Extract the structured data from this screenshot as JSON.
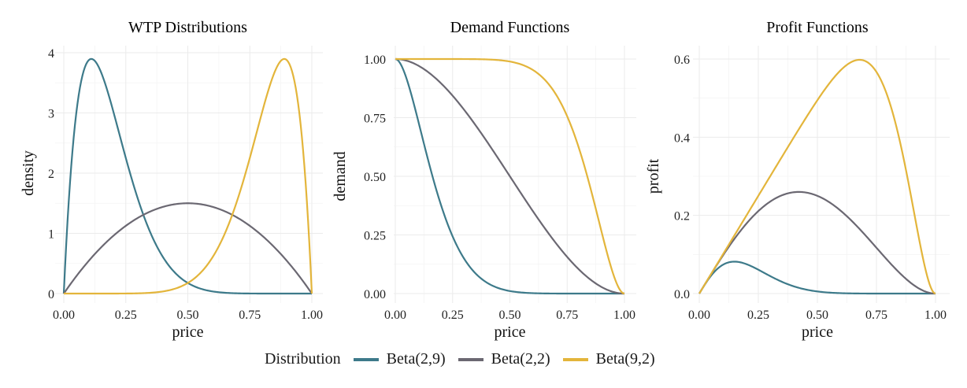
{
  "chart_data": [
    {
      "type": "line",
      "title": "WTP Distributions",
      "xlabel": "price",
      "ylabel": "density",
      "xlim": [
        0,
        1
      ],
      "ylim": [
        0,
        4
      ],
      "xticks": [
        "0.00",
        "0.25",
        "0.50",
        "0.75",
        "1.00"
      ],
      "yticks": [
        "0",
        "1",
        "2",
        "3",
        "4"
      ],
      "function": "density",
      "series": [
        {
          "name": "Beta(2,9)",
          "a": 2,
          "b": 9,
          "peak": {
            "x": 0.11,
            "y": 3.87
          }
        },
        {
          "name": "Beta(2,2)",
          "a": 2,
          "b": 2,
          "peak": {
            "x": 0.5,
            "y": 1.5
          }
        },
        {
          "name": "Beta(9,2)",
          "a": 9,
          "b": 2,
          "peak": {
            "x": 0.89,
            "y": 3.87
          }
        }
      ],
      "grid": true
    },
    {
      "type": "line",
      "title": "Demand Functions",
      "xlabel": "price",
      "ylabel": "demand",
      "xlim": [
        0,
        1
      ],
      "ylim": [
        0,
        1
      ],
      "xticks": [
        "0.00",
        "0.25",
        "0.50",
        "0.75",
        "1.00"
      ],
      "yticks": [
        "0.00",
        "0.25",
        "0.50",
        "0.75",
        "1.00"
      ],
      "function": "demand",
      "series": [
        {
          "name": "Beta(2,9)",
          "a": 2,
          "b": 9
        },
        {
          "name": "Beta(2,2)",
          "a": 2,
          "b": 2
        },
        {
          "name": "Beta(9,2)",
          "a": 9,
          "b": 2
        }
      ],
      "grid": true
    },
    {
      "type": "line",
      "title": "Profit Functions",
      "xlabel": "price",
      "ylabel": "profit",
      "xlim": [
        0,
        1
      ],
      "ylim": [
        0,
        0.6
      ],
      "xticks": [
        "0.00",
        "0.25",
        "0.50",
        "0.75",
        "1.00"
      ],
      "yticks": [
        "0.0",
        "0.2",
        "0.4",
        "0.6"
      ],
      "function": "profit",
      "series": [
        {
          "name": "Beta(2,9)",
          "a": 2,
          "b": 9,
          "peak": {
            "x": 0.15,
            "y": 0.08
          }
        },
        {
          "name": "Beta(2,2)",
          "a": 2,
          "b": 2,
          "peak": {
            "x": 0.42,
            "y": 0.26
          }
        },
        {
          "name": "Beta(9,2)",
          "a": 9,
          "b": 2,
          "peak": {
            "x": 0.68,
            "y": 0.6
          }
        }
      ],
      "grid": true
    }
  ],
  "legend": {
    "title": "Distribution",
    "placement": "bottom",
    "items": [
      {
        "label": "Beta(2,9)",
        "color": "#3d7a8a"
      },
      {
        "label": "Beta(2,2)",
        "color": "#6b6872"
      },
      {
        "label": "Beta(9,2)",
        "color": "#e3b53b"
      }
    ]
  }
}
